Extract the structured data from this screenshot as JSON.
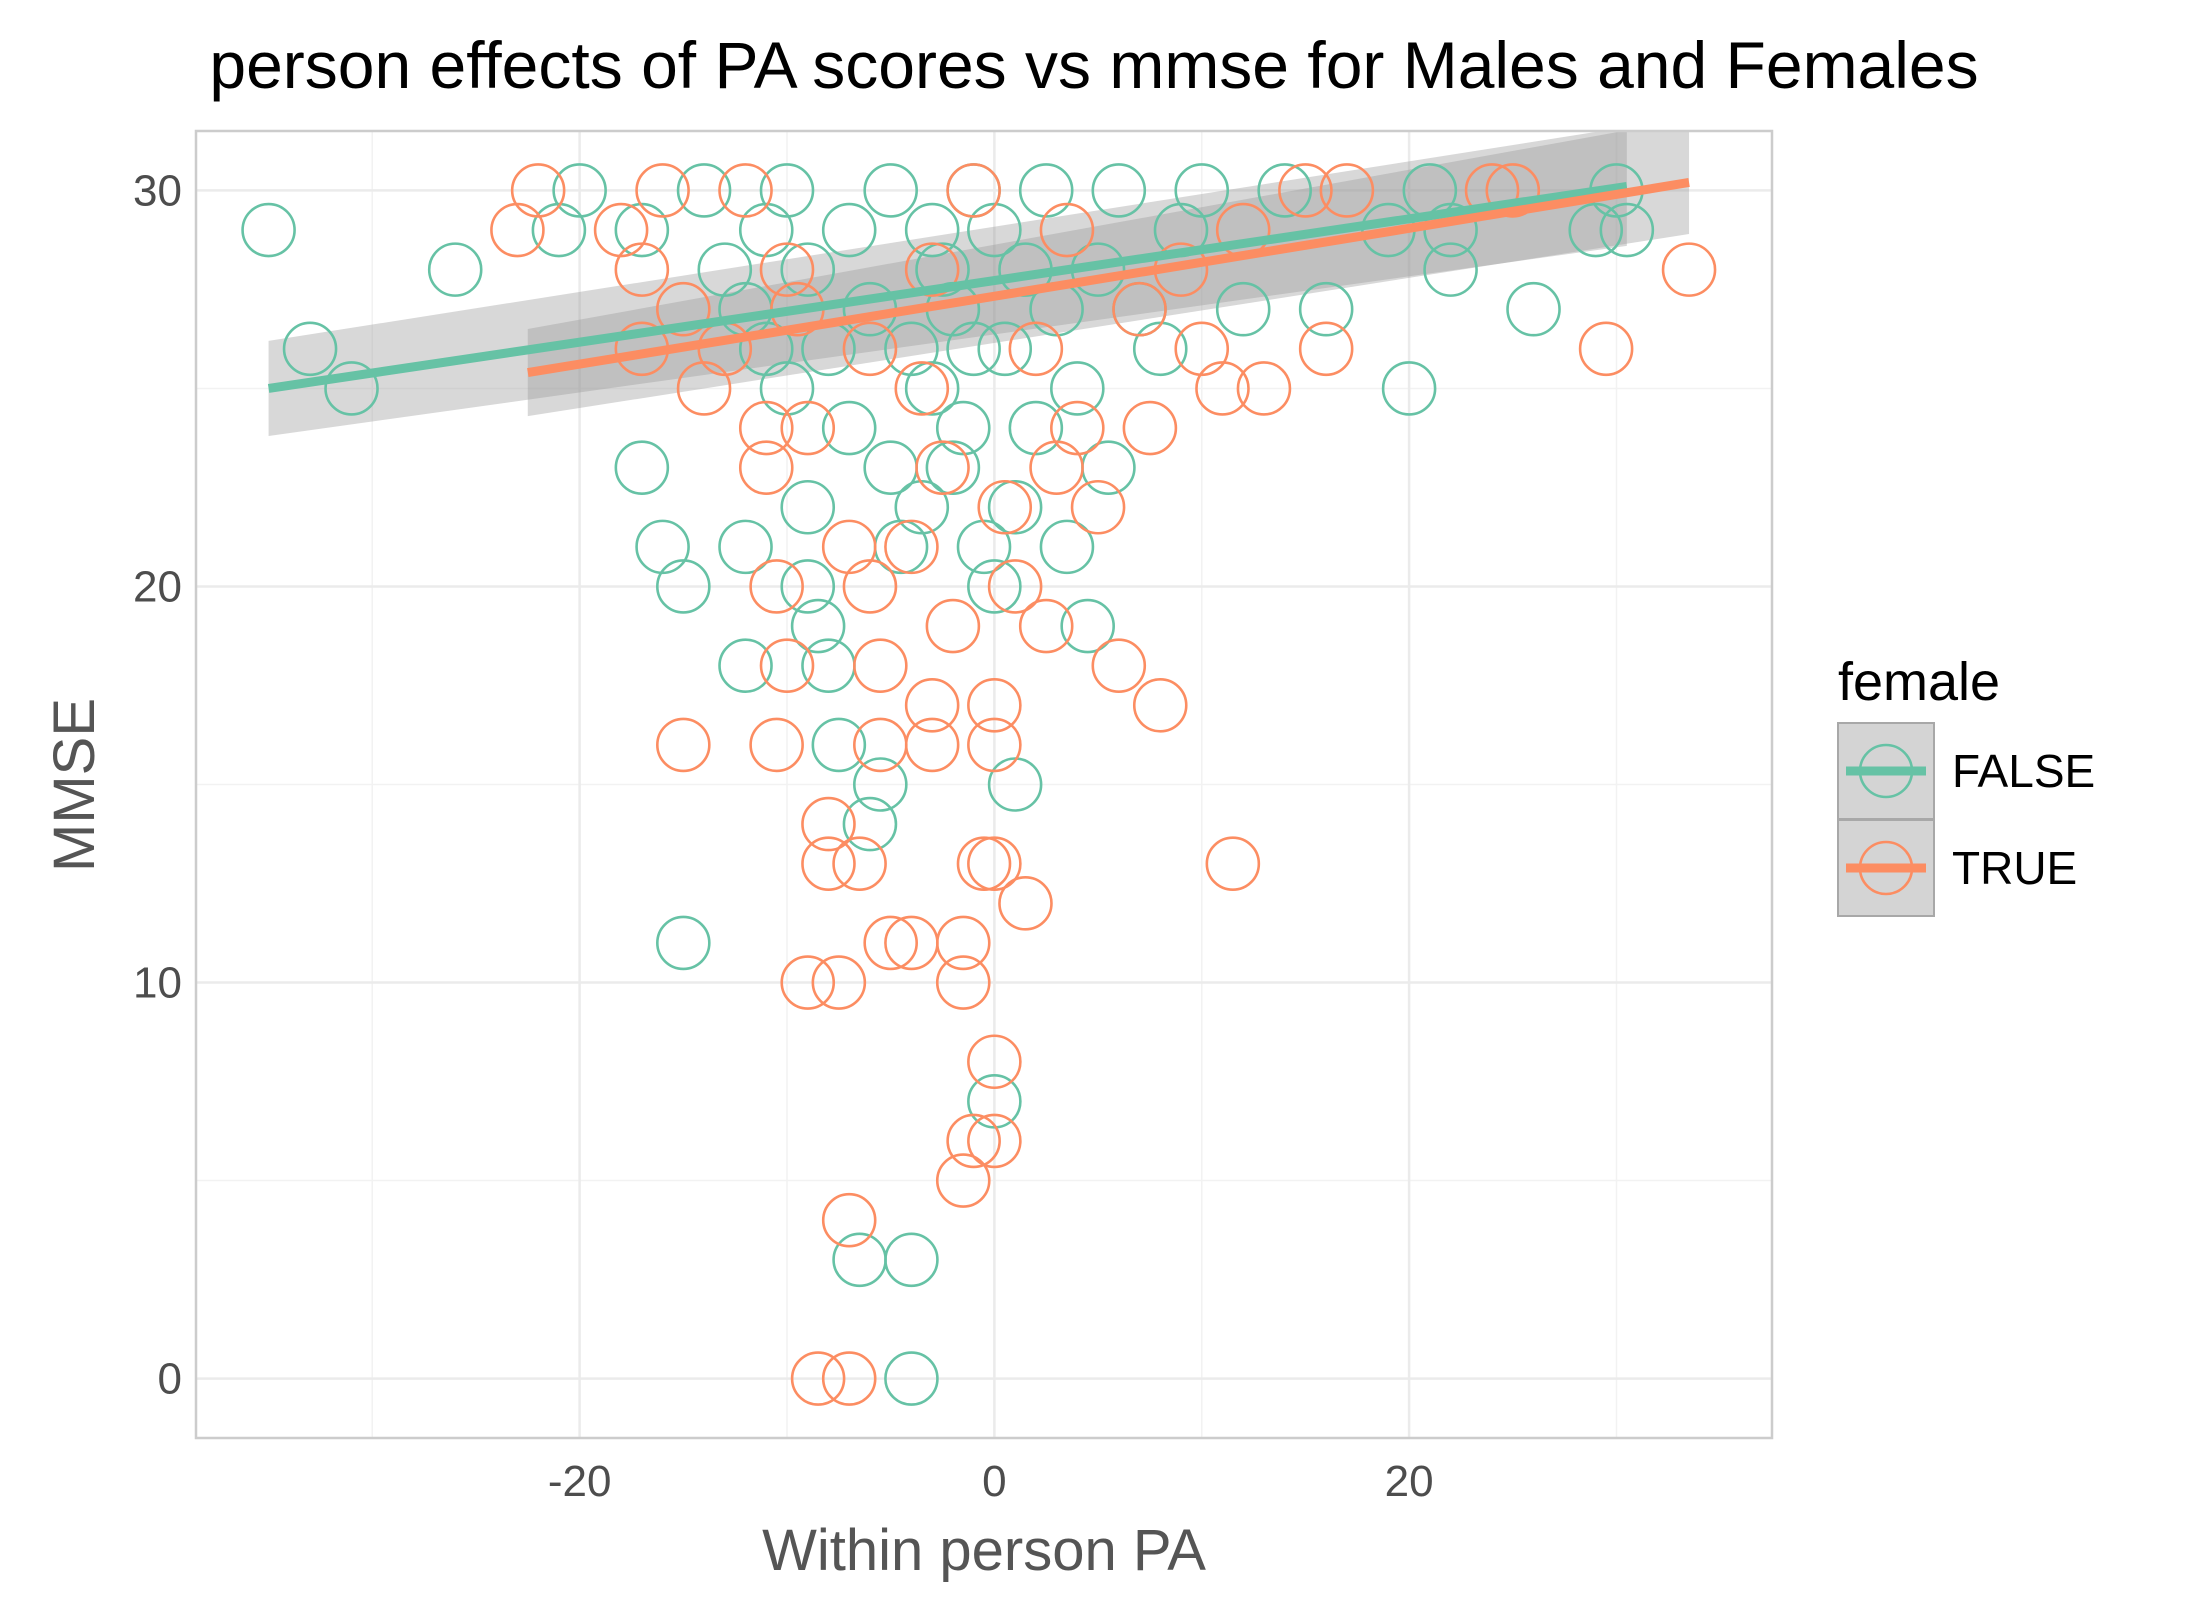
{
  "chart_data": {
    "type": "scatter",
    "title": "person effects of PA scores vs mmse for Males and Females",
    "xlabel": "Within person PA",
    "ylabel": "MMSE",
    "xlim": [
      -38.5,
      37.5
    ],
    "ylim": [
      -1.5,
      31.5
    ],
    "x_ticks": [
      -20,
      0,
      20
    ],
    "y_ticks": [
      0,
      10,
      20,
      30
    ],
    "x_tick_labels": [
      "-20",
      "0",
      "20"
    ],
    "y_tick_labels": [
      "0",
      "10",
      "20",
      "30"
    ],
    "x_minor_ticks": [
      -30,
      -10,
      10,
      30
    ],
    "y_minor_ticks": [
      5,
      15,
      25
    ],
    "grid": true,
    "legend": {
      "title": "female",
      "position": "right",
      "entries": [
        "FALSE",
        "TRUE"
      ]
    },
    "colors": {
      "FALSE": "#66c2a5",
      "TRUE": "#fc8d62",
      "band": "#999999",
      "grid": "#ebebeb",
      "border": "#cccccc"
    },
    "series": [
      {
        "name": "FALSE",
        "color": "#66c2a5",
        "points": [
          [
            -35,
            29
          ],
          [
            -33,
            26
          ],
          [
            -31,
            25
          ],
          [
            -26,
            28
          ],
          [
            -21,
            29
          ],
          [
            -20,
            30
          ],
          [
            -17,
            29
          ],
          [
            -17,
            23
          ],
          [
            -16,
            21
          ],
          [
            -15,
            20
          ],
          [
            -15,
            11
          ],
          [
            -14,
            30
          ],
          [
            -13,
            28
          ],
          [
            -12,
            27
          ],
          [
            -12,
            21
          ],
          [
            -12,
            18
          ],
          [
            -11,
            29
          ],
          [
            -11,
            26
          ],
          [
            -10,
            25
          ],
          [
            -10,
            30
          ],
          [
            -9,
            22
          ],
          [
            -9,
            20
          ],
          [
            -9,
            28
          ],
          [
            -8.5,
            19
          ],
          [
            -8,
            26
          ],
          [
            -8,
            18
          ],
          [
            -7.5,
            16
          ],
          [
            -7,
            29
          ],
          [
            -7,
            24
          ],
          [
            -6.5,
            3
          ],
          [
            -6,
            14
          ],
          [
            -6,
            27
          ],
          [
            -5.5,
            15
          ],
          [
            -5,
            30
          ],
          [
            -5,
            23
          ],
          [
            -4.5,
            21
          ],
          [
            -4,
            3
          ],
          [
            -4,
            0
          ],
          [
            -4,
            26
          ],
          [
            -3.5,
            22
          ],
          [
            -3,
            29
          ],
          [
            -3,
            25
          ],
          [
            -2.5,
            28
          ],
          [
            -2,
            27
          ],
          [
            -2,
            23
          ],
          [
            -1.5,
            24
          ],
          [
            -1,
            30
          ],
          [
            -1,
            26
          ],
          [
            -0.5,
            21
          ],
          [
            0,
            29
          ],
          [
            0,
            20
          ],
          [
            0,
            7
          ],
          [
            0.5,
            26
          ],
          [
            1,
            22
          ],
          [
            1,
            15
          ],
          [
            1.5,
            28
          ],
          [
            2,
            24
          ],
          [
            2.5,
            30
          ],
          [
            3,
            27
          ],
          [
            3.5,
            21
          ],
          [
            4,
            25
          ],
          [
            4.5,
            19
          ],
          [
            5,
            28
          ],
          [
            5.5,
            23
          ],
          [
            6,
            30
          ],
          [
            7,
            27
          ],
          [
            8,
            26
          ],
          [
            9,
            29
          ],
          [
            10,
            30
          ],
          [
            12,
            27
          ],
          [
            14,
            30
          ],
          [
            16,
            27
          ],
          [
            19,
            29
          ],
          [
            20,
            25
          ],
          [
            21,
            30
          ],
          [
            22,
            28
          ],
          [
            22,
            29
          ],
          [
            26,
            27
          ],
          [
            29,
            29
          ],
          [
            30,
            30
          ],
          [
            30.5,
            29
          ]
        ]
      },
      {
        "name": "TRUE",
        "color": "#fc8d62",
        "points": [
          [
            -23,
            29
          ],
          [
            -22,
            30
          ],
          [
            -18,
            29
          ],
          [
            -17,
            28
          ],
          [
            -17,
            26
          ],
          [
            -16,
            30
          ],
          [
            -15,
            27
          ],
          [
            -15,
            16
          ],
          [
            -14,
            25
          ],
          [
            -13,
            26
          ],
          [
            -12,
            30
          ],
          [
            -11,
            24
          ],
          [
            -11,
            23
          ],
          [
            -10.5,
            20
          ],
          [
            -10,
            18
          ],
          [
            -10.5,
            16
          ],
          [
            -10,
            28
          ],
          [
            -9.5,
            27
          ],
          [
            -9,
            24
          ],
          [
            -9,
            10
          ],
          [
            -8.5,
            0
          ],
          [
            -8,
            14
          ],
          [
            -8,
            13
          ],
          [
            -7.5,
            10
          ],
          [
            -7,
            0
          ],
          [
            -7,
            4
          ],
          [
            -7,
            21
          ],
          [
            -6.5,
            13
          ],
          [
            -6,
            20
          ],
          [
            -6,
            26
          ],
          [
            -5.5,
            18
          ],
          [
            -5.5,
            16
          ],
          [
            -5,
            11
          ],
          [
            -4,
            11
          ],
          [
            -4,
            21
          ],
          [
            -3.5,
            25
          ],
          [
            -3,
            17
          ],
          [
            -3,
            16
          ],
          [
            -3,
            28
          ],
          [
            -2.5,
            23
          ],
          [
            -2,
            19
          ],
          [
            -1.5,
            11
          ],
          [
            -1.5,
            10
          ],
          [
            -1.5,
            5
          ],
          [
            -1,
            6
          ],
          [
            -1,
            30
          ],
          [
            -0.5,
            13
          ],
          [
            0,
            13
          ],
          [
            0,
            17
          ],
          [
            0,
            16
          ],
          [
            0,
            8
          ],
          [
            0,
            6
          ],
          [
            0.5,
            22
          ],
          [
            1,
            20
          ],
          [
            1.5,
            12
          ],
          [
            2,
            26
          ],
          [
            2.5,
            19
          ],
          [
            3,
            23
          ],
          [
            3.5,
            29
          ],
          [
            4,
            24
          ],
          [
            5,
            22
          ],
          [
            6,
            18
          ],
          [
            7,
            27
          ],
          [
            7.5,
            24
          ],
          [
            8,
            17
          ],
          [
            9,
            28
          ],
          [
            10,
            26
          ],
          [
            11,
            25
          ],
          [
            11.5,
            13
          ],
          [
            12,
            29
          ],
          [
            13,
            25
          ],
          [
            15,
            30
          ],
          [
            16,
            26
          ],
          [
            17,
            30
          ],
          [
            24,
            30
          ],
          [
            25,
            30
          ],
          [
            29.5,
            26
          ],
          [
            33.5,
            28
          ]
        ]
      }
    ],
    "trend_lines": [
      {
        "name": "FALSE",
        "color": "#66c2a5",
        "x": [
          -35,
          30.5
        ],
        "y": [
          25.0,
          30.1
        ],
        "band_lower": [
          23.8,
          28.6
        ],
        "band_upper": [
          26.2,
          31.6
        ]
      },
      {
        "name": "TRUE",
        "color": "#fc8d62",
        "x": [
          -22.5,
          33.5
        ],
        "y": [
          25.4,
          30.2
        ],
        "band_lower": [
          24.3,
          28.9
        ],
        "band_upper": [
          26.5,
          31.8
        ]
      }
    ]
  }
}
